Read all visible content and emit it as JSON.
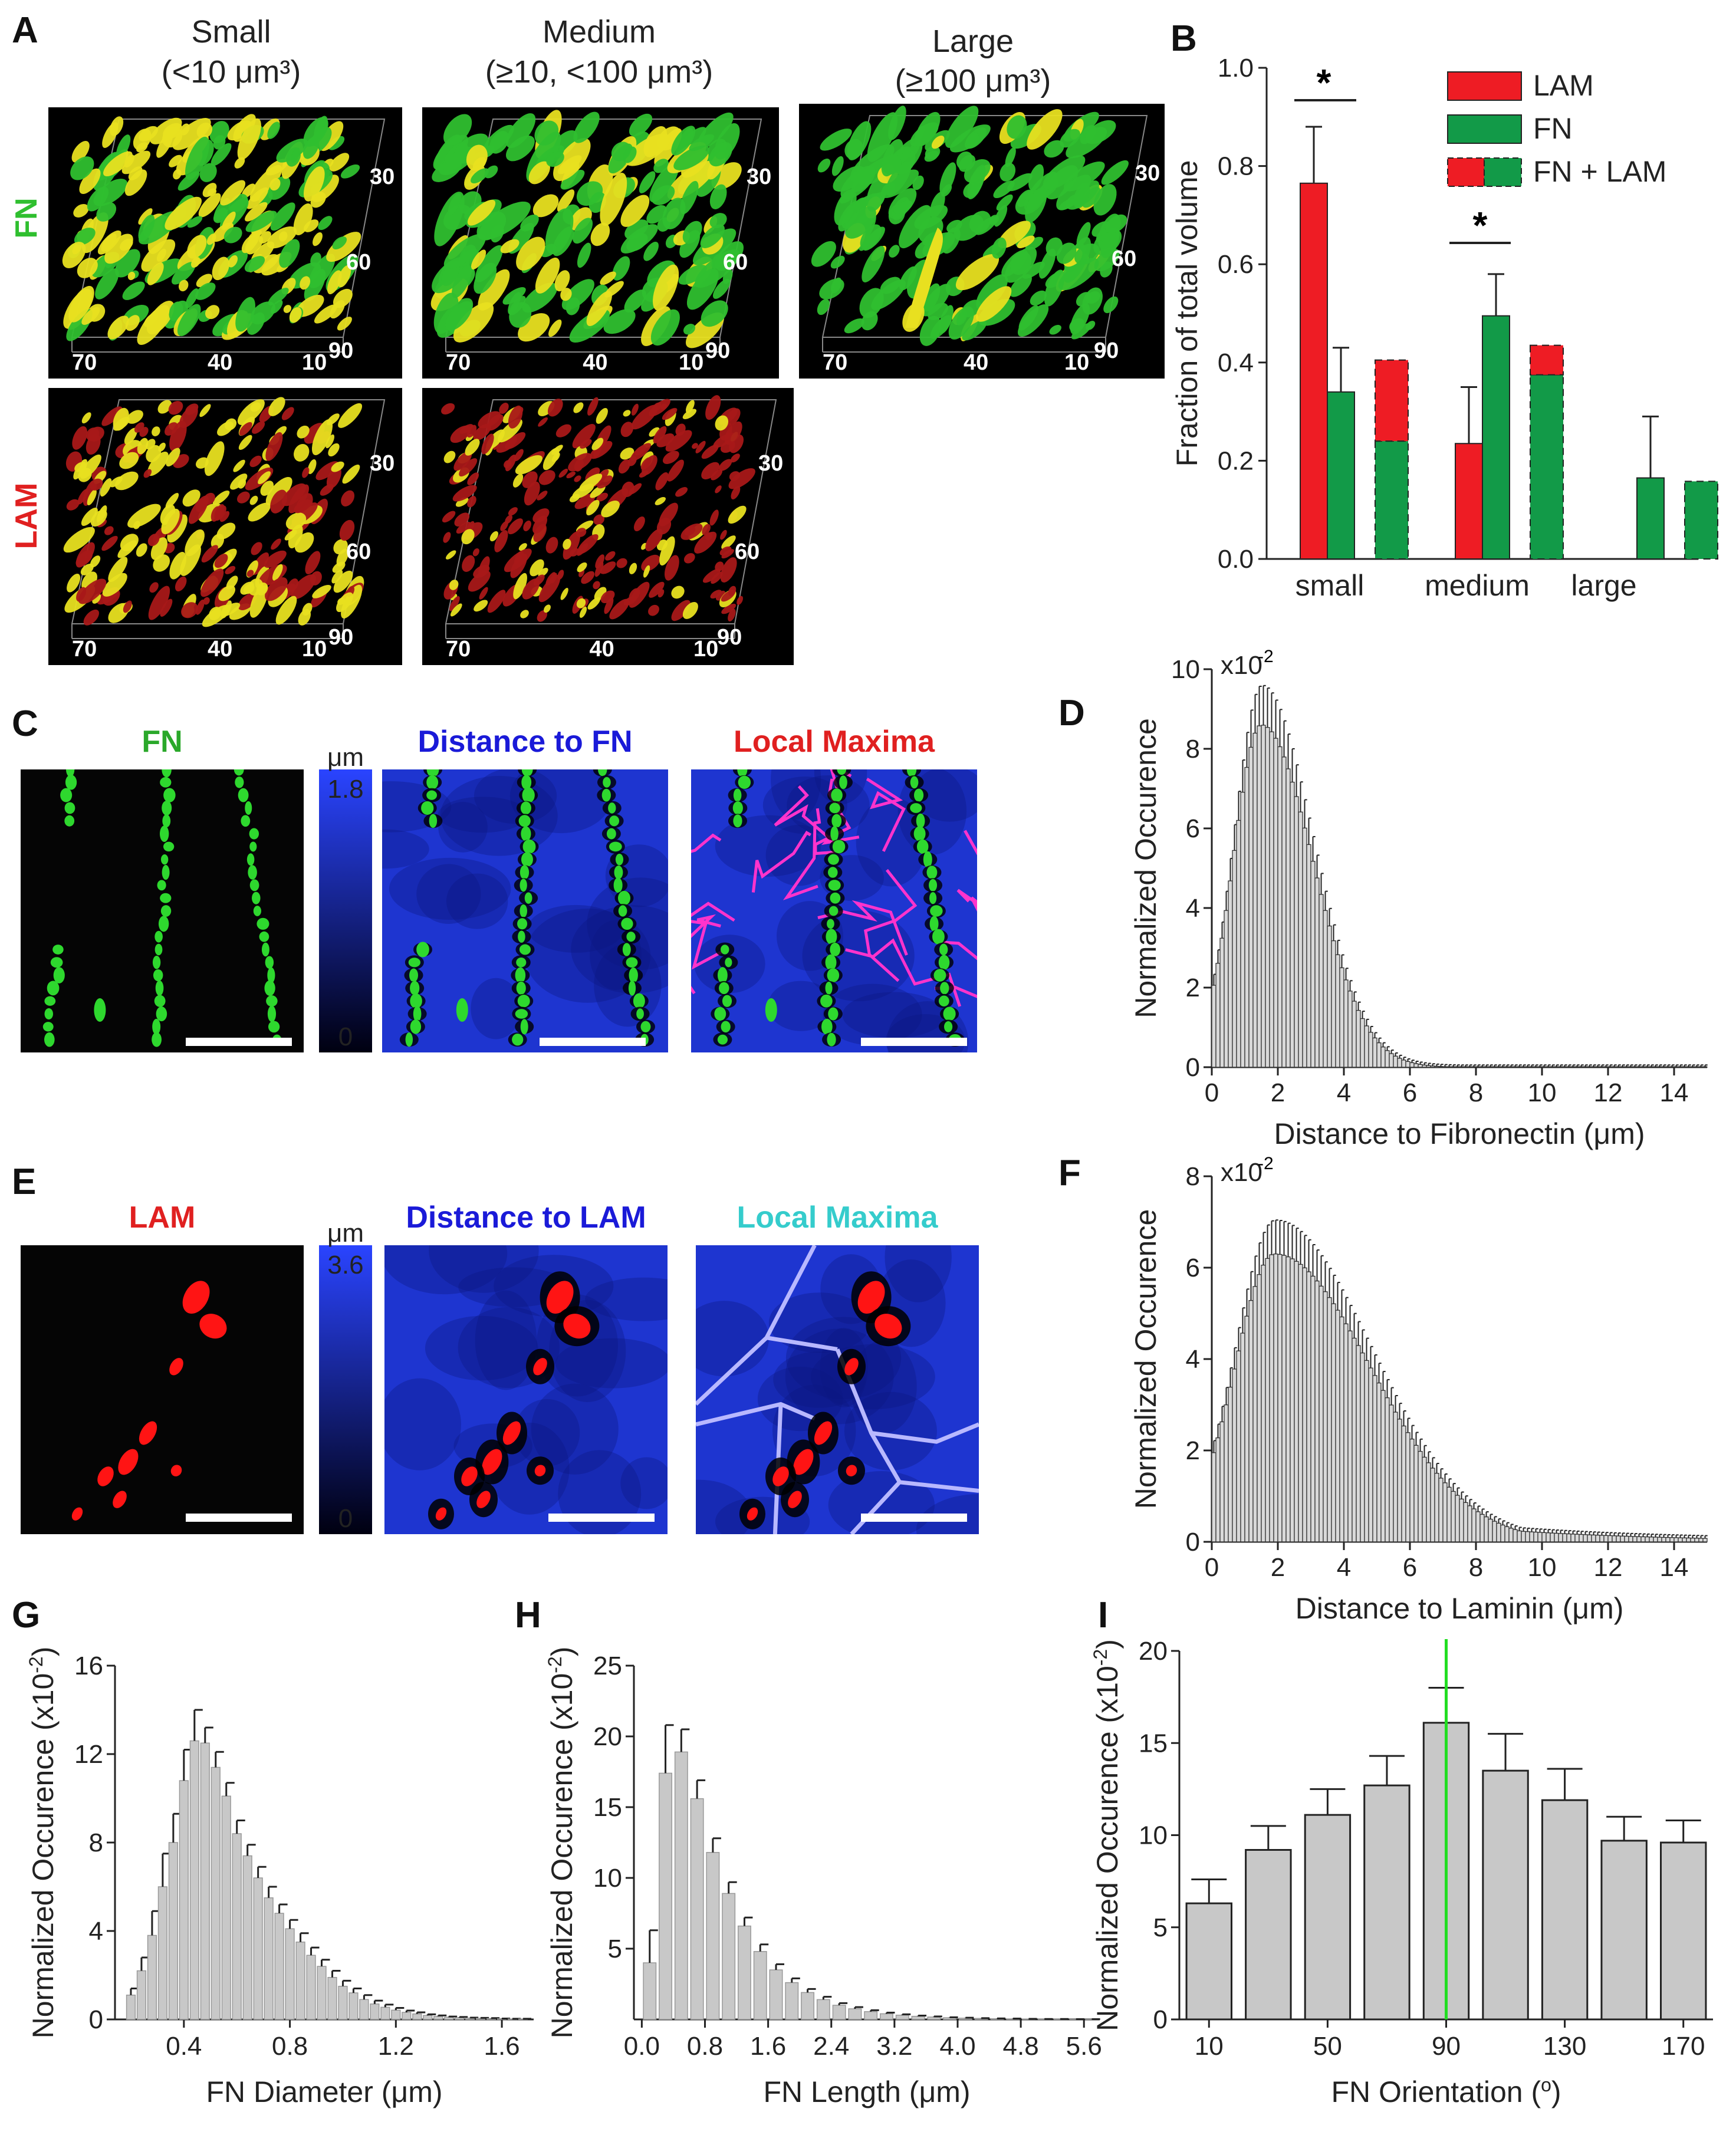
{
  "panel_labels": [
    "A",
    "B",
    "C",
    "D",
    "E",
    "F",
    "G",
    "H",
    "I"
  ],
  "panelA": {
    "columns": [
      {
        "name": "Small",
        "range": "(<10 μm³)"
      },
      {
        "name": "Medium",
        "range": "(≥10, <100 μm³)"
      },
      {
        "name": "Large",
        "range": "(≥100 μm³)"
      }
    ],
    "rows": [
      "FN",
      "LAM"
    ],
    "axis_labels_right": [
      "30",
      "60",
      "90"
    ],
    "axis_labels_bottom": [
      "70",
      "40",
      "10"
    ],
    "colors": {
      "fn": "#2fbf2f",
      "lam": "#e02020",
      "overlap": "#e8e020",
      "bg": "#000000"
    }
  },
  "panelC": {
    "titles": [
      "FN",
      "Distance to FN",
      "Local Maxima"
    ],
    "scale_unit": "μm",
    "scale_max": "1.8",
    "scale_min": "0"
  },
  "panelE": {
    "titles": [
      "LAM",
      "Distance to LAM",
      "Local Maxima"
    ],
    "scale_unit": "μm",
    "scale_max": "3.6",
    "scale_min": "0"
  },
  "chart_data": [
    {
      "id": "B",
      "type": "bar",
      "ylabel": "Fraction of total volume",
      "ylim": [
        0,
        1.0
      ],
      "yticks": [
        "0.0",
        "0.2",
        "0.4",
        "0.6",
        "0.8",
        "1.0"
      ],
      "categories": [
        "small",
        "medium",
        "large"
      ],
      "legend": [
        "LAM",
        "FN",
        "FN + LAM"
      ],
      "legend_placement": "top-right",
      "series": [
        {
          "name": "LAM",
          "values": [
            0.765,
            0.235,
            0
          ],
          "errors": [
            0.115,
            0.115,
            0
          ]
        },
        {
          "name": "FN",
          "values": [
            0.34,
            0.495,
            0.165
          ],
          "errors": [
            0.09,
            0.085,
            0.125
          ]
        },
        {
          "name": "FN + LAM",
          "fn_part": [
            0.24,
            0.375,
            0.158
          ],
          "lam_part": [
            0.165,
            0.06,
            0
          ]
        }
      ],
      "significance": [
        "*",
        "*"
      ]
    },
    {
      "id": "D",
      "type": "bar",
      "xlabel": "Distance to Fibronectin (μm)",
      "ylabel": "Normalized Occurence",
      "multiplier": "x10-2",
      "xlim": [
        0,
        15
      ],
      "ylim": [
        0,
        10
      ],
      "xticks": [
        "0",
        "2",
        "4",
        "6",
        "8",
        "10",
        "12",
        "14"
      ],
      "yticks": [
        "0",
        "2",
        "4",
        "6",
        "8",
        "10"
      ],
      "bin_width": 0.125,
      "mode": 1.5,
      "peak": 8.6,
      "width_lo": 0.85,
      "width_hi": 1.55
    },
    {
      "id": "F",
      "type": "bar",
      "xlabel": "Distance to Laminin (μm)",
      "ylabel": "Normalized Occurence",
      "multiplier": "x10-2",
      "xlim": [
        0,
        15
      ],
      "ylim": [
        0,
        8
      ],
      "xticks": [
        "0",
        "2",
        "4",
        "6",
        "8",
        "10",
        "12",
        "14"
      ],
      "yticks": [
        "0",
        "2",
        "4",
        "6",
        "8"
      ],
      "bin_width": 0.125,
      "mode": 1.9,
      "peak": 6.3,
      "width_lo": 1.2,
      "width_hi": 2.9
    },
    {
      "id": "G",
      "type": "bar",
      "xlabel": "FN Diameter (μm)",
      "ylabel": "Normalized Occurence (x10-2)",
      "xlim": [
        0.14,
        1.72
      ],
      "ylim": [
        0,
        16
      ],
      "xticks": [
        "0.4",
        "0.8",
        "1.2",
        "1.6"
      ],
      "yticks": [
        "0",
        "4",
        "8",
        "12",
        "16"
      ],
      "x": [
        0.2,
        0.24,
        0.28,
        0.32,
        0.36,
        0.4,
        0.44,
        0.48,
        0.52,
        0.56,
        0.6,
        0.64,
        0.68,
        0.72,
        0.76,
        0.8,
        0.84,
        0.88,
        0.92,
        0.96,
        1.0,
        1.04,
        1.08,
        1.12,
        1.16,
        1.2,
        1.24,
        1.28,
        1.32,
        1.36,
        1.4,
        1.44,
        1.48,
        1.52,
        1.56,
        1.6,
        1.64,
        1.68
      ],
      "values": [
        1.1,
        2.2,
        3.8,
        6.0,
        8.0,
        10.8,
        12.6,
        12.5,
        11.4,
        10.1,
        8.4,
        7.4,
        6.4,
        5.5,
        4.8,
        4.1,
        3.5,
        2.9,
        2.4,
        1.9,
        1.5,
        1.2,
        0.9,
        0.7,
        0.55,
        0.42,
        0.32,
        0.25,
        0.18,
        0.14,
        0.1,
        0.08,
        0.06,
        0.05,
        0.04,
        0.03,
        0.02,
        0.02
      ],
      "errors": [
        0.3,
        0.6,
        1.1,
        1.5,
        1.3,
        1.4,
        1.4,
        0.7,
        0.7,
        0.6,
        0.6,
        0.5,
        0.5,
        0.5,
        0.4,
        0.4,
        0.4,
        0.35,
        0.3,
        0.3,
        0.25,
        0.2,
        0.2,
        0.15,
        0.12,
        0.1,
        0.08,
        0.07,
        0.05,
        0.04,
        0.03,
        0.03,
        0.02,
        0.02,
        0.02,
        0.01,
        0.01,
        0.01
      ]
    },
    {
      "id": "H",
      "type": "bar",
      "xlabel": "FN Length (μm)",
      "ylabel": "Normalized Occurence (x10-2)",
      "xlim": [
        -0.1,
        5.8
      ],
      "ylim": [
        0,
        25
      ],
      "xticks": [
        "0.0",
        "0.8",
        "1.6",
        "2.4",
        "3.2",
        "4.0",
        "4.8",
        "5.6"
      ],
      "yticks": [
        "5",
        "10",
        "15",
        "20",
        "25"
      ],
      "x": [
        0.1,
        0.3,
        0.5,
        0.7,
        0.9,
        1.1,
        1.3,
        1.5,
        1.7,
        1.9,
        2.1,
        2.3,
        2.5,
        2.7,
        2.9,
        3.1,
        3.3,
        3.5,
        3.7,
        3.9,
        4.1,
        4.3,
        4.5,
        4.7,
        4.9,
        5.1,
        5.3,
        5.5,
        5.7
      ],
      "values": [
        4.0,
        17.4,
        18.9,
        15.6,
        11.8,
        8.9,
        6.6,
        4.8,
        3.5,
        2.6,
        1.9,
        1.4,
        1.0,
        0.75,
        0.55,
        0.4,
        0.3,
        0.22,
        0.17,
        0.12,
        0.09,
        0.07,
        0.05,
        0.04,
        0.03,
        0.02,
        0.02,
        0.01,
        0.01
      ],
      "errors": [
        2.3,
        3.4,
        1.6,
        1.3,
        1.0,
        0.8,
        0.6,
        0.5,
        0.4,
        0.3,
        0.25,
        0.2,
        0.15,
        0.12,
        0.1,
        0.08,
        0.06,
        0.05,
        0.04,
        0.03,
        0.03,
        0.02,
        0.02,
        0.02,
        0.01,
        0.01,
        0.01,
        0.01,
        0.01
      ]
    },
    {
      "id": "I",
      "type": "bar",
      "xlabel": "FN Orientation (o)",
      "ylabel": "Normalized Occurence (x10-2)",
      "xlim": [
        0,
        180
      ],
      "ylim": [
        0,
        20
      ],
      "xticks": [
        "10",
        "50",
        "90",
        "130",
        "170"
      ],
      "yticks": [
        "0",
        "5",
        "10",
        "15",
        "20"
      ],
      "x": [
        10,
        30,
        50,
        70,
        90,
        110,
        130,
        150,
        170
      ],
      "values": [
        6.3,
        9.2,
        11.1,
        12.7,
        16.1,
        13.5,
        11.9,
        9.7,
        9.6
      ],
      "errors": [
        1.3,
        1.3,
        1.4,
        1.6,
        1.9,
        2.0,
        1.7,
        1.3,
        1.2
      ],
      "marker_line": {
        "x": 90,
        "color": "#22dd22"
      }
    }
  ]
}
